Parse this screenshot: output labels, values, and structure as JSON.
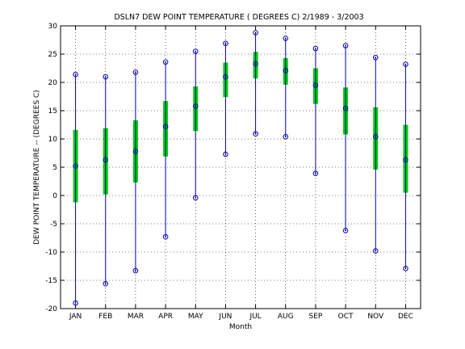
{
  "chart_data": {
    "type": "box",
    "title": "DSLN7  DEW POINT TEMPERATURE ( DEGREES C) 2/1989 - 3/2003",
    "xlabel": "Month",
    "ylabel": "DEW POINT TEMPERATURE -- (DEGREES C)",
    "ylim": [
      -20,
      30
    ],
    "yticks": [
      -20,
      -15,
      -10,
      -5,
      0,
      5,
      10,
      15,
      20,
      25,
      30
    ],
    "grid": true,
    "categories": [
      "JAN",
      "FEB",
      "MAR",
      "APR",
      "MAY",
      "JUN",
      "JUL",
      "AUG",
      "SEP",
      "OCT",
      "NOV",
      "DEC"
    ],
    "series": [
      {
        "min": [
          -19.0,
          -15.6,
          -13.3,
          -7.3,
          -0.4,
          7.3,
          10.9,
          10.4,
          3.9,
          -6.2,
          -9.8,
          -12.9
        ],
        "q1": [
          -1.2,
          0.2,
          2.3,
          6.9,
          11.4,
          17.4,
          20.7,
          19.6,
          16.2,
          10.8,
          4.6,
          0.5
        ],
        "median": [
          5.2,
          6.3,
          7.8,
          12.2,
          15.8,
          21.0,
          23.3,
          22.1,
          19.5,
          15.4,
          10.4,
          6.3
        ],
        "q3": [
          11.6,
          11.9,
          13.3,
          16.7,
          19.3,
          23.5,
          25.4,
          24.3,
          22.5,
          19.1,
          15.6,
          12.5
        ],
        "max": [
          21.4,
          21.0,
          21.8,
          23.6,
          25.5,
          26.9,
          28.8,
          27.8,
          26.0,
          26.5,
          24.4,
          23.2
        ]
      }
    ],
    "colors": {
      "whisker": "#0000c0",
      "box": "#00cc00",
      "marker": "#0000c0",
      "grid": "#000000"
    }
  }
}
